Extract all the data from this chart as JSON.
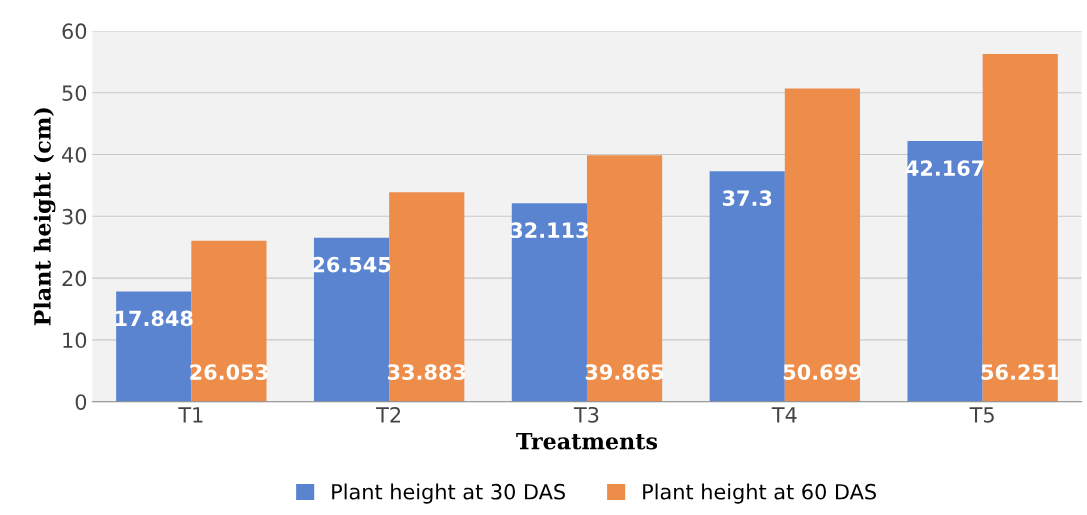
{
  "chart_data": {
    "type": "bar",
    "xlabel": "Treatments",
    "ylabel": "Plant height (cm)",
    "categories": [
      "T1",
      "T2",
      "T3",
      "T4",
      "T5"
    ],
    "series": [
      {
        "name": "Plant height at 30 DAS",
        "color": "#5a84cf",
        "values": [
          17.848,
          26.545,
          32.113,
          37.3,
          42.167
        ]
      },
      {
        "name": "Plant height at 60 DAS",
        "color": "#ee8c4a",
        "values": [
          26.053,
          33.883,
          39.865,
          50.699,
          56.251
        ]
      }
    ],
    "ylim": [
      0,
      60
    ],
    "yticks": [
      0,
      10,
      20,
      30,
      40,
      50,
      60
    ],
    "grid": "y",
    "legend": "bottom",
    "data_labels": true
  }
}
